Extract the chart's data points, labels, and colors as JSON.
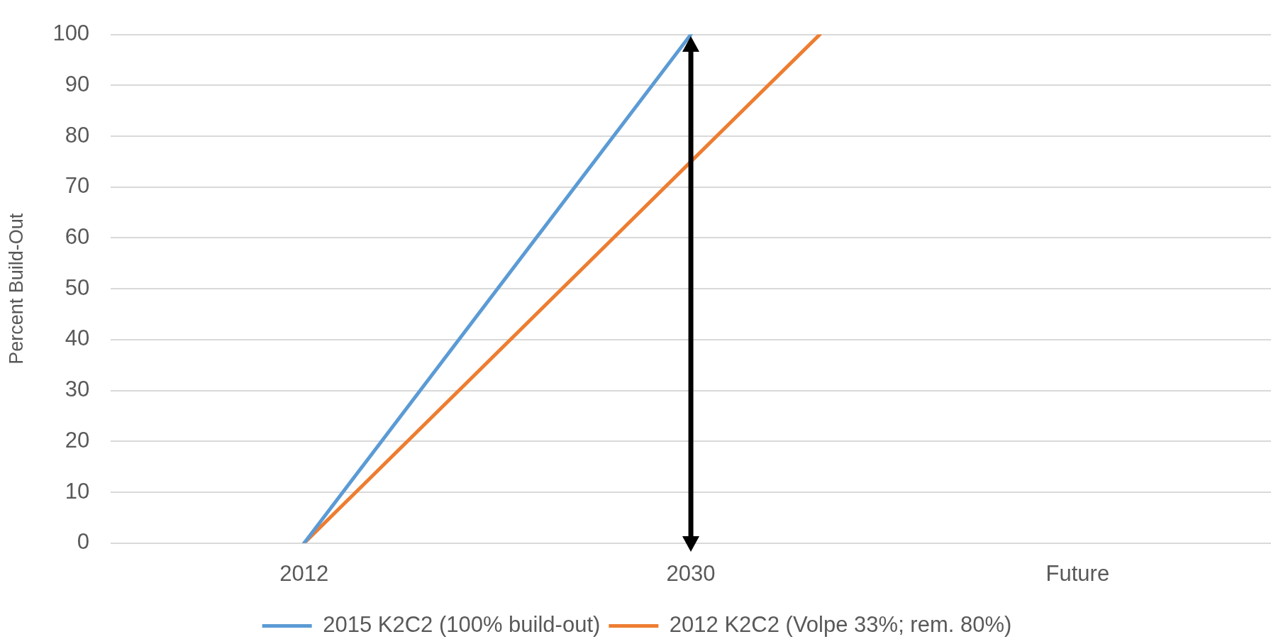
{
  "chart_data": {
    "type": "line",
    "ylabel": "Percent Build-Out",
    "xlim": [
      2003,
      2057
    ],
    "xticks": [
      2012,
      2030,
      {
        "value": 2048,
        "label": "Future"
      }
    ],
    "ylim": [
      0,
      100
    ],
    "yticks": [
      0,
      10,
      20,
      30,
      40,
      50,
      60,
      70,
      80,
      90,
      100
    ],
    "series": [
      {
        "name": "2015 K2C2 (100% build-out)",
        "color": "#5b9bd5",
        "x": [
          2012,
          2030
        ],
        "values": [
          0,
          100
        ]
      },
      {
        "name": "2012 K2C2 (Volpe 33%; rem. 80%)",
        "color": "#ed7d31",
        "x": [
          2012,
          2030,
          2036
        ],
        "values": [
          0,
          75,
          100
        ]
      }
    ],
    "ref_lines": [
      {
        "axis": "x",
        "value": 2030,
        "color": "#000000"
      }
    ],
    "grid": "y",
    "legend": "bottom",
    "marker": "none",
    "line_style": "solid"
  }
}
